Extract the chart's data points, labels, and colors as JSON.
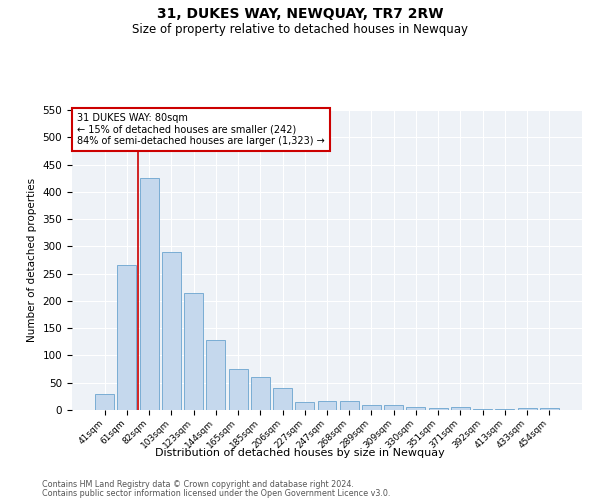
{
  "title": "31, DUKES WAY, NEWQUAY, TR7 2RW",
  "subtitle": "Size of property relative to detached houses in Newquay",
  "xlabel": "Distribution of detached houses by size in Newquay",
  "ylabel": "Number of detached properties",
  "bar_color": "#c5d8ed",
  "bar_edge_color": "#7aadd4",
  "vline_color": "#cc0000",
  "vline_x_idx": 2,
  "categories": [
    "41sqm",
    "61sqm",
    "82sqm",
    "103sqm",
    "123sqm",
    "144sqm",
    "165sqm",
    "185sqm",
    "206sqm",
    "227sqm",
    "247sqm",
    "268sqm",
    "289sqm",
    "309sqm",
    "330sqm",
    "351sqm",
    "371sqm",
    "392sqm",
    "413sqm",
    "433sqm",
    "454sqm"
  ],
  "values": [
    30,
    265,
    425,
    290,
    215,
    128,
    76,
    60,
    40,
    15,
    17,
    16,
    10,
    10,
    5,
    3,
    5,
    2,
    2,
    3,
    4
  ],
  "ylim": [
    0,
    550
  ],
  "yticks": [
    0,
    50,
    100,
    150,
    200,
    250,
    300,
    350,
    400,
    450,
    500,
    550
  ],
  "annotation_text": "31 DUKES WAY: 80sqm\n← 15% of detached houses are smaller (242)\n84% of semi-detached houses are larger (1,323) →",
  "annotation_box_color": "#ffffff",
  "annotation_box_edge": "#cc0000",
  "footnote1": "Contains HM Land Registry data © Crown copyright and database right 2024.",
  "footnote2": "Contains public sector information licensed under the Open Government Licence v3.0.",
  "plot_bg_color": "#eef2f7"
}
